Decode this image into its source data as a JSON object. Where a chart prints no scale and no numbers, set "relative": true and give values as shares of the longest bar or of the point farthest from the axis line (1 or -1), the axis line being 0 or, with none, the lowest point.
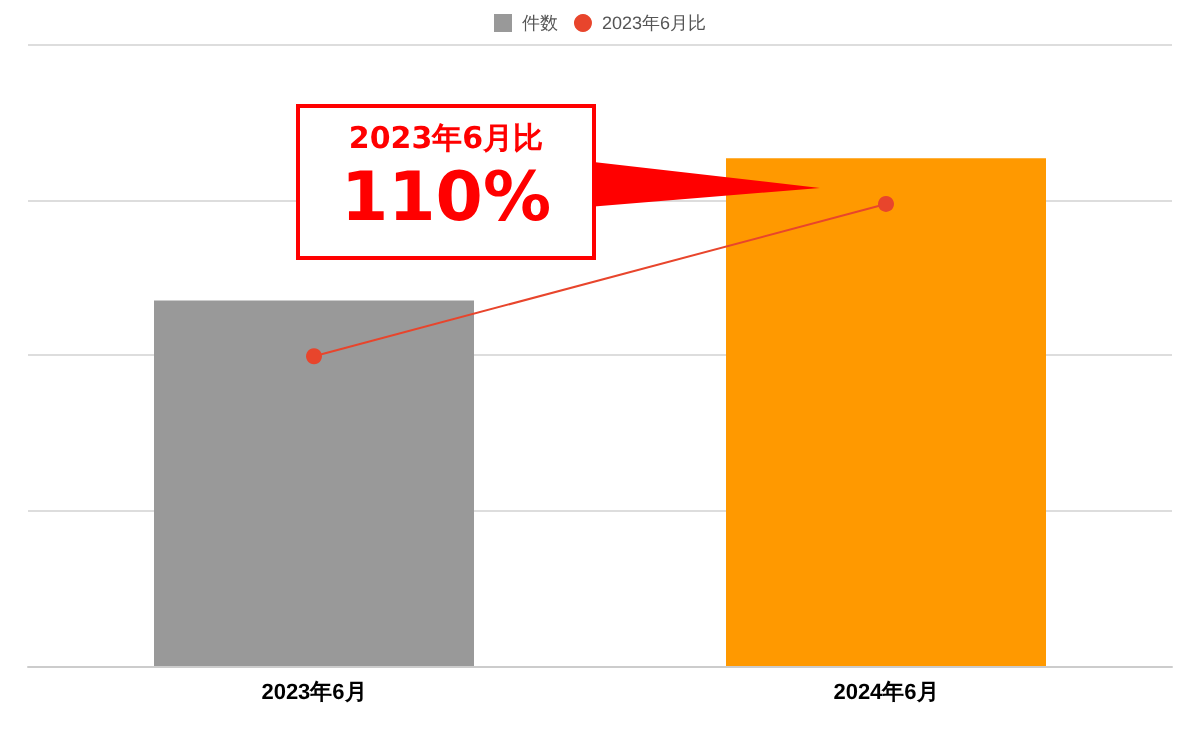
{
  "chart_data": {
    "type": "bar",
    "relative": true,
    "categories": [
      "2023年6月",
      "2024年6月"
    ],
    "series": [
      {
        "name": "件数",
        "colors": [
          "#999999",
          "#ff9900"
        ],
        "color": "#999999",
        "values": [
          0.72,
          1
        ]
      },
      {
        "name": "2023年6月比",
        "type": "line",
        "color": "#e8452c",
        "values": [
          0.61,
          0.91
        ]
      }
    ],
    "annotations": [
      "2023年6月比",
      "110%"
    ],
    "grid": "y",
    "legend": "top",
    "marker": "circle",
    "line_style": "solid"
  }
}
